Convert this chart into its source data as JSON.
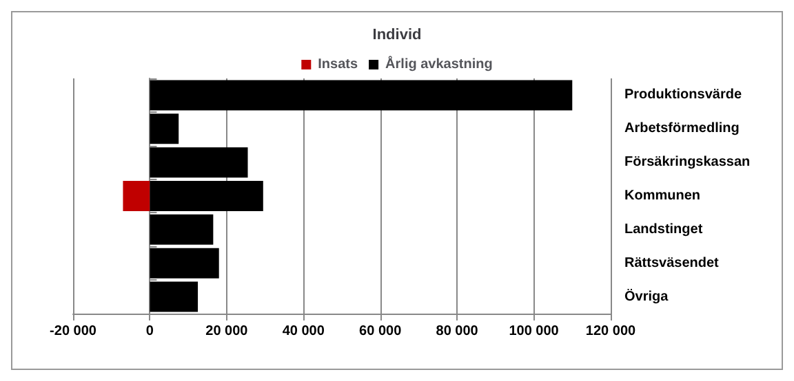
{
  "chart_data": {
    "type": "bar",
    "title": "Individ",
    "orientation": "horizontal",
    "stacked": true,
    "categories": [
      "Produktionsvärde",
      "Arbetsförmedling",
      "Försäkringskassan",
      "Kommunen",
      "Landstinget",
      "Rättsväsendet",
      "Övriga"
    ],
    "series": [
      {
        "name": "Insats",
        "color": "#c00000",
        "values": [
          null,
          null,
          null,
          -7000,
          null,
          null,
          null
        ]
      },
      {
        "name": "Årlig avkastning",
        "color": "#000000",
        "values": [
          110000,
          7500,
          25500,
          29500,
          16500,
          18000,
          12500
        ]
      }
    ],
    "xlim": [
      -20000,
      120000
    ],
    "xticks": [
      {
        "value": -20000,
        "label": "-20 000"
      },
      {
        "value": 0,
        "label": "0"
      },
      {
        "value": 20000,
        "label": "20 000"
      },
      {
        "value": 40000,
        "label": "40 000"
      },
      {
        "value": 60000,
        "label": "60 000"
      },
      {
        "value": 80000,
        "label": "80 000"
      },
      {
        "value": 100000,
        "label": "100 000"
      },
      {
        "value": 120000,
        "label": "120 000"
      }
    ],
    "grid": "x",
    "legend": "top"
  }
}
